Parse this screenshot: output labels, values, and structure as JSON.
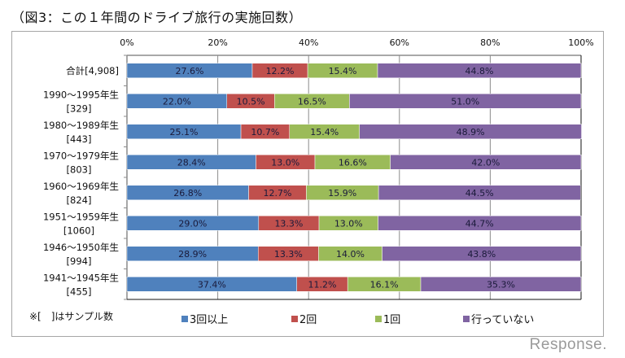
{
  "title": "（図3：この１年間のドライブ旅行の実施回数）",
  "note": "※[　]はサンプル数",
  "watermark": "Response.",
  "chart_data": {
    "type": "bar",
    "orientation": "horizontal",
    "stacked": "100%",
    "title": "（図3：この１年間のドライブ旅行の実施回数）",
    "xlabel": "",
    "ylabel": "",
    "xlim": [
      0,
      100
    ],
    "xticks": [
      "0%",
      "20%",
      "40%",
      "60%",
      "80%",
      "100%"
    ],
    "grid": true,
    "legend_position": "bottom",
    "categories": [
      {
        "line1": "合計[4,908]",
        "line2": ""
      },
      {
        "line1": "1990～1995年生",
        "line2": "[329]"
      },
      {
        "line1": "1980～1989年生",
        "line2": "[443]"
      },
      {
        "line1": "1970～1979年生",
        "line2": "[803]"
      },
      {
        "line1": "1960～1969年生",
        "line2": "[824]"
      },
      {
        "line1": "1951～1959年生",
        "line2": "[1060]"
      },
      {
        "line1": "1946～1950年生",
        "line2": "[994]"
      },
      {
        "line1": "1941～1945年生",
        "line2": "[455]"
      }
    ],
    "series": [
      {
        "name": "3回以上",
        "color": "#4f81bd",
        "values": [
          27.6,
          22.0,
          25.1,
          28.4,
          26.8,
          29.0,
          28.9,
          37.4
        ]
      },
      {
        "name": "2回",
        "color": "#c0504d",
        "values": [
          12.2,
          10.5,
          10.7,
          13.0,
          12.7,
          13.3,
          13.3,
          11.2
        ]
      },
      {
        "name": "1回",
        "color": "#9bbb59",
        "values": [
          15.4,
          16.5,
          15.4,
          16.6,
          15.9,
          13.0,
          14.0,
          16.1
        ]
      },
      {
        "name": "行っていない",
        "color": "#8064a2",
        "values": [
          44.8,
          51.0,
          48.9,
          42.0,
          44.5,
          44.7,
          43.8,
          35.3
        ]
      }
    ]
  }
}
